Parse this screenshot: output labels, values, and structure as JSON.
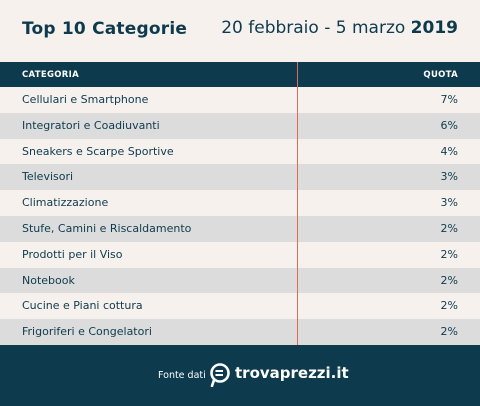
{
  "header": {
    "title": "Top 10 Categorie",
    "date_range": "20 febbraio - 5 marzo",
    "year": "2019"
  },
  "colors": {
    "primary": "#0d3b4d",
    "background": "#f7f1ee",
    "row_alt": "#dcdcdc",
    "divider": "#e06a5a"
  },
  "chart_data": {
    "type": "table",
    "title": "Top 10 Categorie",
    "subtitle": "20 febbraio - 5 marzo 2019",
    "columns": [
      "CATEGORIA",
      "QUOTA"
    ],
    "rows": [
      {
        "category": "Cellulari e Smartphone",
        "share": "7%",
        "value": 7
      },
      {
        "category": "Integratori e Coadiuvanti",
        "share": "6%",
        "value": 6
      },
      {
        "category": "Sneakers e Scarpe Sportive",
        "share": "4%",
        "value": 4
      },
      {
        "category": "Televisori",
        "share": "3%",
        "value": 3
      },
      {
        "category": "Climatizzazione",
        "share": "3%",
        "value": 3
      },
      {
        "category": "Stufe, Camini e Riscaldamento",
        "share": "2%",
        "value": 2
      },
      {
        "category": "Prodotti per il Viso",
        "share": "2%",
        "value": 2
      },
      {
        "category": "Notebook",
        "share": "2%",
        "value": 2
      },
      {
        "category": "Cucine e Piani cottura",
        "share": "2%",
        "value": 2
      },
      {
        "category": "Frigoriferi e Congelatori",
        "share": "2%",
        "value": 2
      }
    ]
  },
  "footer": {
    "source_label": "Fonte dati",
    "brand": "trovaprezzi.it",
    "logo_icon": "trovaprezzi-logo-icon"
  }
}
